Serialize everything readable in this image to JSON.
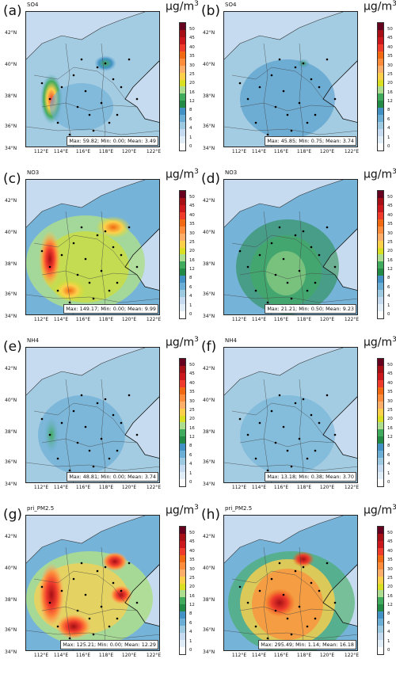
{
  "unit_base": "μg/m",
  "unit_exp": "3",
  "lat_labels": [
    "42°N",
    "40°N",
    "38°N",
    "36°N",
    "34°N"
  ],
  "lon_labels": [
    "112°E",
    "114°E",
    "116°E",
    "118°E",
    "120°E",
    "122°E"
  ],
  "colorbar": {
    "ticks": [
      "50",
      "45",
      "40",
      "35",
      "30",
      "25",
      "20",
      "16",
      "12",
      "8",
      "6",
      "4",
      "1",
      "0"
    ],
    "colors": [
      "#67001f",
      "#a50f15",
      "#cb181d",
      "#ef3b2c",
      "#f16913",
      "#fd8d3c",
      "#fdae6b",
      "#fdd04b",
      "#d9e021",
      "#addd8e",
      "#41ab5d",
      "#238b45",
      "#4292c6",
      "#6baed6",
      "#9ecae1",
      "#c6dbef",
      "#e0ecf6",
      "#ffffff"
    ]
  },
  "panels": [
    {
      "label": "(a)",
      "species": "SO4",
      "max": "59.82",
      "min": "0.00",
      "mean": "3.49"
    },
    {
      "label": "(b)",
      "species": "SO4",
      "max": "45.85",
      "min": "0.75",
      "mean": "3.74"
    },
    {
      "label": "(c)",
      "species": "NO3",
      "max": "149.17",
      "min": "0.00",
      "mean": "9.99"
    },
    {
      "label": "(d)",
      "species": "NO3",
      "max": "21.21",
      "min": "0.50",
      "mean": "9.23"
    },
    {
      "label": "(e)",
      "species": "NH4",
      "max": "48.81",
      "min": "0.00",
      "mean": "3.74"
    },
    {
      "label": "(f)",
      "species": "NH4",
      "max": "13.18",
      "min": "0.38",
      "mean": "3.70"
    },
    {
      "label": "(g)",
      "species": "pri_PM2.5",
      "max": "125.21",
      "min": "0.00",
      "mean": "12.29"
    },
    {
      "label": "(h)",
      "species": "pri_PM2.5",
      "max": "295.49",
      "min": "1.14",
      "mean": "16.18"
    }
  ]
}
